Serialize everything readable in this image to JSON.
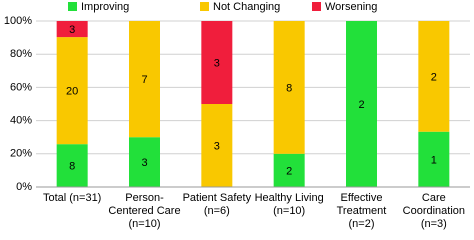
{
  "chart_data": {
    "type": "stacked_bar",
    "categories": [
      [
        "Total (n=31)"
      ],
      [
        "Person-",
        "Centered Care",
        "(n=10)"
      ],
      [
        "Patient Safety",
        "(n=6)"
      ],
      [
        "Healthy Living",
        "(n=10)"
      ],
      [
        "Effective",
        "Treatment",
        "(n=2)"
      ],
      [
        "Care",
        "Coordination",
        "(n=3)"
      ]
    ],
    "series": [
      {
        "name": "Improving",
        "color": "#22e03a",
        "values": [
          25.8,
          30,
          0,
          20,
          100,
          33.3
        ],
        "counts": [
          8,
          3,
          null,
          2,
          2,
          1
        ]
      },
      {
        "name": "Not Changing",
        "color": "#f9c800",
        "values": [
          64.5,
          70,
          50,
          80,
          0,
          66.7
        ],
        "counts": [
          20,
          7,
          3,
          8,
          null,
          2
        ]
      },
      {
        "name": "Worsening",
        "color": "#f01e3c",
        "values": [
          9.7,
          0,
          50,
          0,
          0,
          0
        ],
        "counts": [
          3,
          null,
          3,
          null,
          null,
          null
        ]
      }
    ],
    "ylim": [
      0,
      100
    ],
    "yticks": [
      {
        "value": 0,
        "label": "0%"
      },
      {
        "value": 20,
        "label": "20%"
      },
      {
        "value": 40,
        "label": "40%"
      },
      {
        "value": 60,
        "label": "60%"
      },
      {
        "value": 80,
        "label": "80%"
      },
      {
        "value": 100,
        "label": "100%"
      }
    ],
    "grid": true,
    "legend": "top"
  }
}
